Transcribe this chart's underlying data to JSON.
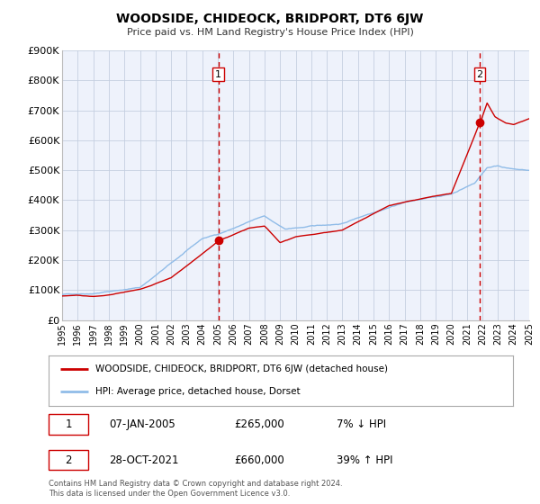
{
  "title": "WOODSIDE, CHIDEOCK, BRIDPORT, DT6 6JW",
  "subtitle": "Price paid vs. HM Land Registry's House Price Index (HPI)",
  "bg_color": "#eef2fb",
  "plot_bg_color": "#eef2fb",
  "grid_color": "#c5cfe0",
  "hpi_color": "#90bce8",
  "sale_color": "#cc0000",
  "marker_color": "#cc0000",
  "dashed_line_color": "#cc0000",
  "legend_label_sale": "WOODSIDE, CHIDEOCK, BRIDPORT, DT6 6JW (detached house)",
  "legend_label_hpi": "HPI: Average price, detached house, Dorset",
  "sale1_x": 2005.04,
  "sale1_y": 265000,
  "sale1_label": "1",
  "sale2_x": 2021.83,
  "sale2_y": 660000,
  "sale2_label": "2",
  "annotation1_date": "07-JAN-2005",
  "annotation1_price": "£265,000",
  "annotation1_hpi": "7% ↓ HPI",
  "annotation2_date": "28-OCT-2021",
  "annotation2_price": "£660,000",
  "annotation2_hpi": "39% ↑ HPI",
  "xmin": 1995,
  "xmax": 2025,
  "ymin": 0,
  "ymax": 900000,
  "yticks": [
    0,
    100000,
    200000,
    300000,
    400000,
    500000,
    600000,
    700000,
    800000,
    900000
  ],
  "footer": "Contains HM Land Registry data © Crown copyright and database right 2024.\nThis data is licensed under the Open Government Licence v3.0."
}
